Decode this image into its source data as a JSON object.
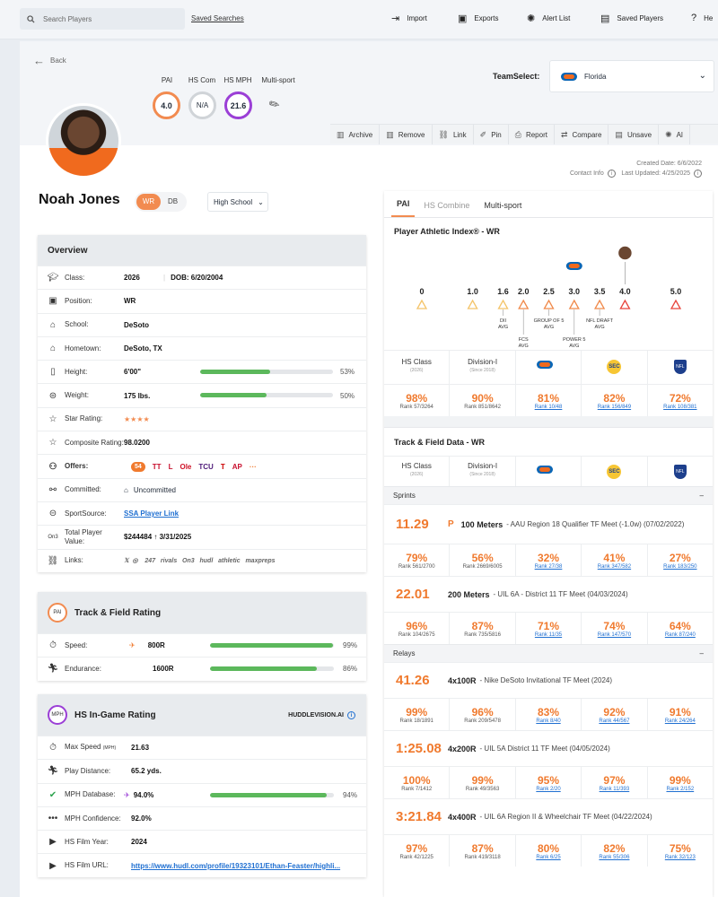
{
  "topbar": {
    "search_placeholder": "Search Players",
    "saved_searches": "Saved Searches",
    "actions": [
      "Import",
      "Exports",
      "Alert List",
      "Saved Players",
      "He"
    ]
  },
  "back": "Back",
  "metrics": [
    {
      "label": "PAI",
      "value": "4.0",
      "color": "#f28b50"
    },
    {
      "label": "HS Com",
      "value": "N/A",
      "color": "#cfd3d7"
    },
    {
      "label": "HS MPH",
      "value": "21.6",
      "color": "#9b3fd6"
    },
    {
      "label": "Multi-sport",
      "value": ""
    }
  ],
  "teamselect": {
    "label": "TeamSelect:",
    "value": "Florida"
  },
  "toolbar": [
    "Archive",
    "Remove",
    "Link",
    "Pin",
    "Report",
    "Compare",
    "Unsave",
    "Al"
  ],
  "created": {
    "created": "Created Date: 6/6/2022",
    "updated": "Last Updated: 4/25/2025",
    "contact": "Contact Info"
  },
  "player": {
    "name": "Noah Jones",
    "pos_active": "WR",
    "pos_other": "DB",
    "level": "High School"
  },
  "overview": {
    "title": "Overview",
    "rows": [
      {
        "label": "Class:",
        "value": "2026",
        "extra": "DOB: 6/20/2004"
      },
      {
        "label": "Position:",
        "value": "WR"
      },
      {
        "label": "School:",
        "value": "DeSoto"
      },
      {
        "label": "Hometown:",
        "value": "DeSoto, TX"
      },
      {
        "label": "Height:",
        "value": "6'00\"",
        "pct": "53%",
        "fill": 0.53
      },
      {
        "label": "Weight:",
        "value": "175 lbs.",
        "pct": "50%",
        "fill": 0.5
      },
      {
        "label": "Star Rating:",
        "value": "★★★★"
      },
      {
        "label": "Composite Rating:",
        "value": "98.0200"
      },
      {
        "label": "Offers:",
        "value": "54",
        "logos": [
          "TT",
          "L",
          "Ole",
          "TCU",
          "T",
          "AP",
          "···"
        ]
      },
      {
        "label": "Committed:",
        "value": "Uncommitted"
      },
      {
        "label": "SportSource:",
        "value": "SSA Player Link"
      },
      {
        "label": "Total Player Value:",
        "value": "$244484 ↑ 3/31/2025"
      },
      {
        "label": "Links:",
        "value": "𝕏  ◎    247   rivals   On3   hudl   athletic   maxpreps"
      }
    ]
  },
  "tf_rating": {
    "badge": "PAI",
    "title": "Track & Field Rating",
    "rows": [
      {
        "label": "Speed:",
        "value": "800R",
        "pct": "99%",
        "fill": 0.99
      },
      {
        "label": "Endurance:",
        "value": "1600R",
        "pct": "86%",
        "fill": 0.86
      }
    ]
  },
  "hs_ingame": {
    "badge": "MPH",
    "title": "HS In-Game Rating",
    "brand": "HUDDLEVISION.AI",
    "rows": [
      {
        "label": "Max Speed",
        "label_small": "(MPH)",
        "value": "21.63"
      },
      {
        "label": "Play Distance:",
        "value": "65.2 yds."
      },
      {
        "label": "MPH Database:",
        "value": "94.0%",
        "pct": "94%",
        "fill": 0.94
      },
      {
        "label": "MPH Confidence:",
        "value": "92.0%"
      },
      {
        "label": "HS Film Year:",
        "value": "2024"
      },
      {
        "label": "HS Film URL:",
        "value": "https://www.hudl.com/profile/19323101/Ethan-Feaster/highli..."
      }
    ]
  },
  "right": {
    "tabs": [
      "PAI",
      "HS Combine",
      "Multi-sport"
    ],
    "pai_title": "Player Athletic Index® - WR",
    "scale": {
      "ticks": [
        "0",
        "1.0",
        "1.6",
        "2.0",
        "2.5",
        "3.0",
        "3.5",
        "4.0",
        "5.0"
      ],
      "values": [
        0,
        1.0,
        1.6,
        2.0,
        2.5,
        3.0,
        3.5,
        4.0,
        5.0
      ],
      "player_value": 4.0,
      "team_value": 3.0,
      "labels": [
        {
          "at": 1.6,
          "text": "DII AVG"
        },
        {
          "at": 2.0,
          "text": "FCS AVG"
        },
        {
          "at": 2.5,
          "text": "GROUP OF 5 AVG"
        },
        {
          "at": 3.0,
          "text": "POWER 5 AVG"
        },
        {
          "at": 3.5,
          "text": "NFL DRAFT AVG"
        }
      ]
    },
    "header_cells": [
      {
        "t": "HS Class",
        "s": "(2026)"
      },
      {
        "t": "Division-I",
        "s": "(Since 2018)"
      },
      {
        "logo": "gator"
      },
      {
        "logo": "sec"
      },
      {
        "logo": "nfl"
      }
    ],
    "pai_row": [
      {
        "v": "98%",
        "r": "Rank 57/3264"
      },
      {
        "v": "90%",
        "r": "Rank 851/8642"
      },
      {
        "v": "81%",
        "r": "Rank 10/48",
        "u": true
      },
      {
        "v": "82%",
        "r": "Rank 156/849",
        "u": true
      },
      {
        "v": "72%",
        "r": "Rank 108/381",
        "u": true
      }
    ],
    "tf_title": "Track & Field Data - WR",
    "sprints_label": "Sprints",
    "relays_label": "Relays",
    "events": [
      {
        "time": "11.29",
        "pr": "P",
        "name": "100 Meters",
        "meet": "- AAU Region 18 Qualifier TF Meet (-1.0w) (07/02/2022)",
        "cells": [
          {
            "v": "79%",
            "r": "Rank 561/2700"
          },
          {
            "v": "56%",
            "r": "Rank 2669/6005"
          },
          {
            "v": "32%",
            "r": "Rank 27/38",
            "u": true
          },
          {
            "v": "41%",
            "r": "Rank 347/582",
            "u": true
          },
          {
            "v": "27%",
            "r": "Rank 183/250",
            "u": true
          }
        ]
      },
      {
        "time": "22.01",
        "name": "200 Meters",
        "meet": "- UIL 6A - District 11 TF Meet (04/03/2024)",
        "cells": [
          {
            "v": "96%",
            "r": "Rank 104/2675"
          },
          {
            "v": "87%",
            "r": "Rank 735/5816"
          },
          {
            "v": "71%",
            "r": "Rank 11/35",
            "u": true
          },
          {
            "v": "74%",
            "r": "Rank 147/570",
            "u": true
          },
          {
            "v": "64%",
            "r": "Rank 87/240",
            "u": true
          }
        ]
      },
      {
        "time": "41.26",
        "name": "4x100R",
        "meet": "- Nike DeSoto Invitational TF Meet (2024)",
        "cells": [
          {
            "v": "99%",
            "r": "Rank 18/1891"
          },
          {
            "v": "96%",
            "r": "Rank 209/5478"
          },
          {
            "v": "83%",
            "r": "Rank 8/40",
            "u": true
          },
          {
            "v": "92%",
            "r": "Rank 44/567",
            "u": true
          },
          {
            "v": "91%",
            "r": "Rank 24/264",
            "u": true
          }
        ]
      },
      {
        "time": "1:25.08",
        "name": "4x200R",
        "meet": "- UIL 5A District 11 TF Meet (04/05/2024)",
        "cells": [
          {
            "v": "100%",
            "r": "Rank 7/1412"
          },
          {
            "v": "99%",
            "r": "Rank 49/3563"
          },
          {
            "v": "95%",
            "r": "Rank 2/20",
            "u": true
          },
          {
            "v": "97%",
            "r": "Rank 11/393",
            "u": true
          },
          {
            "v": "99%",
            "r": "Rank 2/152",
            "u": true
          }
        ]
      },
      {
        "time": "3:21.84",
        "name": "4x400R",
        "meet": "- UIL 6A Region II & Wheelchair TF Meet (04/22/2024)",
        "cells": [
          {
            "v": "97%",
            "r": "Rank 42/1225"
          },
          {
            "v": "87%",
            "r": "Rank 419/3118"
          },
          {
            "v": "80%",
            "r": "Rank 6/25",
            "u": true
          },
          {
            "v": "82%",
            "r": "Rank 55/306",
            "u": true
          },
          {
            "v": "75%",
            "r": "Rank 32/123",
            "u": true
          }
        ]
      }
    ]
  }
}
